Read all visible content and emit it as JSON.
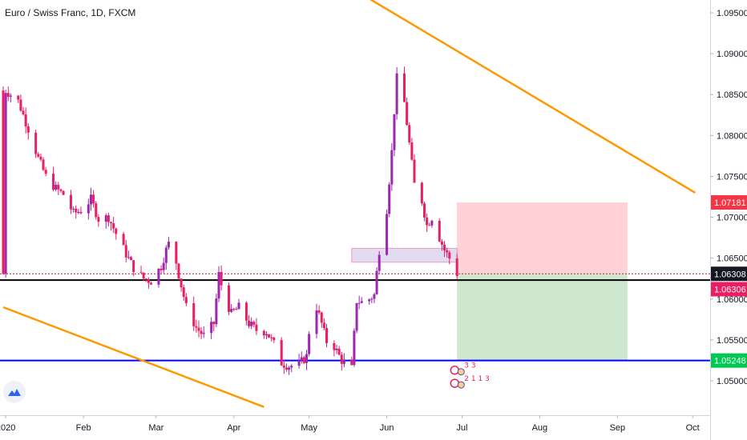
{
  "chart_data": {
    "type": "candlestick",
    "title": "Euro / Swiss Franc, 1D, FXCM",
    "y_range": [
      1.0455,
      1.0975
    ],
    "y_ticks": [
      "1.09500",
      "1.09000",
      "1.08500",
      "1.08000",
      "1.07500",
      "1.07000",
      "1.06500",
      "1.06000",
      "1.05500",
      "1.05000"
    ],
    "x_ticks": [
      {
        "label": "2020",
        "date": "2020-01-01"
      },
      {
        "label": "Feb",
        "date": "2020-02-01"
      },
      {
        "label": "Mar",
        "date": "2020-03-01"
      },
      {
        "label": "Apr",
        "date": "2020-04-01"
      },
      {
        "label": "May",
        "date": "2020-05-01"
      },
      {
        "label": "Jun",
        "date": "2020-06-01"
      },
      {
        "label": "Jul",
        "date": "2020-07-01"
      },
      {
        "label": "Aug",
        "date": "2020-08-01"
      },
      {
        "label": "Sep",
        "date": "2020-09-01"
      },
      {
        "label": "Oct",
        "date": "2020-10-01"
      }
    ],
    "x_start_date": "2019-12-31",
    "up_color": "#9c27b0",
    "down_color": "#e91e63",
    "close_path": [
      [
        "2020-01-01",
        1.0855
      ],
      [
        "2020-01-06",
        1.0842
      ],
      [
        "2020-01-10",
        1.0808
      ],
      [
        "2020-01-14",
        1.0772
      ],
      [
        "2020-01-17",
        1.075
      ],
      [
        "2020-01-21",
        1.0735
      ],
      [
        "2020-01-24",
        1.0728
      ],
      [
        "2020-01-28",
        1.0705
      ],
      [
        "2020-01-31",
        1.0708
      ],
      [
        "2020-02-04",
        1.0722
      ],
      [
        "2020-02-07",
        1.0698
      ],
      [
        "2020-02-11",
        1.07
      ],
      [
        "2020-02-14",
        1.068
      ],
      [
        "2020-02-18",
        1.0655
      ],
      [
        "2020-02-21",
        1.0638
      ],
      [
        "2020-02-25",
        1.0625
      ],
      [
        "2020-02-28",
        1.0622
      ],
      [
        "2020-03-03",
        1.064
      ],
      [
        "2020-03-05",
        1.066
      ],
      [
        "2020-03-07",
        1.0675
      ],
      [
        "2020-03-10",
        1.063
      ],
      [
        "2020-03-13",
        1.059
      ],
      [
        "2020-03-17",
        1.0565
      ],
      [
        "2020-03-20",
        1.0555
      ],
      [
        "2020-03-24",
        1.057
      ],
      [
        "2020-03-26",
        1.063
      ],
      [
        "2020-03-28",
        1.0605
      ],
      [
        "2020-03-31",
        1.0582
      ],
      [
        "2020-04-03",
        1.059
      ],
      [
        "2020-04-07",
        1.057
      ],
      [
        "2020-04-10",
        1.0562
      ],
      [
        "2020-04-14",
        1.056
      ],
      [
        "2020-04-17",
        1.0545
      ],
      [
        "2020-04-20",
        1.0522
      ],
      [
        "2020-04-23",
        1.0518
      ],
      [
        "2020-04-27",
        1.052
      ],
      [
        "2020-04-30",
        1.053
      ],
      [
        "2020-05-01",
        1.056
      ],
      [
        "2020-05-04",
        1.059
      ],
      [
        "2020-05-06",
        1.057
      ],
      [
        "2020-05-08",
        1.0548
      ],
      [
        "2020-05-11",
        1.0542
      ],
      [
        "2020-05-14",
        1.0525
      ],
      [
        "2020-05-18",
        1.0515
      ],
      [
        "2020-05-20",
        1.0598
      ],
      [
        "2020-05-23",
        1.0595
      ],
      [
        "2020-05-25",
        1.06
      ],
      [
        "2020-05-27",
        1.0605
      ],
      [
        "2020-05-29",
        1.066
      ],
      [
        "2020-06-01",
        1.071
      ],
      [
        "2020-06-03",
        1.078
      ],
      [
        "2020-06-04",
        1.083
      ],
      [
        "2020-06-05",
        1.087
      ],
      [
        "2020-06-08",
        1.084
      ],
      [
        "2020-06-10",
        1.079
      ],
      [
        "2020-06-12",
        1.074
      ],
      [
        "2020-06-15",
        1.072
      ],
      [
        "2020-06-17",
        1.069
      ],
      [
        "2020-06-19",
        1.07
      ],
      [
        "2020-06-22",
        1.0675
      ],
      [
        "2020-06-24",
        1.066
      ],
      [
        "2020-06-26",
        1.065
      ],
      [
        "2020-06-29",
        1.0631
      ]
    ],
    "trendlines": [
      {
        "color": "#ff9800",
        "p1": [
          "2020-05-18",
          1.098
        ],
        "p2": [
          "2020-10-02",
          1.073
        ]
      },
      {
        "color": "#ff9800",
        "p1": [
          "2019-12-31",
          1.059
        ],
        "p2": [
          "2020-04-13",
          1.0468
        ]
      }
    ],
    "horizontal_lines": [
      {
        "value": 1.06231,
        "color": "#000000",
        "style": "solid"
      },
      {
        "value": 1.06308,
        "color": "#b71c3a",
        "style": "dotted"
      },
      {
        "value": 1.05248,
        "color": "#0000ff",
        "style": "solid"
      }
    ],
    "zone": {
      "x1": "2020-05-18",
      "x2": "2020-06-29",
      "y1": 1.0645,
      "y2": 1.0662,
      "color": "#d8d0ee",
      "border": "#e91e63"
    },
    "position": {
      "x1": "2020-06-29",
      "x2": "2020-09-05",
      "entry": 1.06308,
      "target": 1.07181,
      "stop": 1.05248,
      "target_color": "#ffcdd2",
      "stop_color": "#c8e6c9"
    },
    "price_labels": [
      {
        "text": "1.07181",
        "value": 1.07181,
        "bg": "#f23645"
      },
      {
        "text": "1.06308",
        "value": 1.06308,
        "bg": "#131722"
      },
      {
        "text": "1.06306",
        "value": 1.06306,
        "bg": "#e91e63"
      },
      {
        "text": "1.05248",
        "value": 1.05248,
        "bg": "#00c853"
      }
    ],
    "event_markers": [
      {
        "label": "3 3",
        "date": "2020-06-30",
        "value": 1.0512
      },
      {
        "label": "2 1 1 3",
        "date": "2020-06-30",
        "value": 1.0496
      }
    ]
  }
}
